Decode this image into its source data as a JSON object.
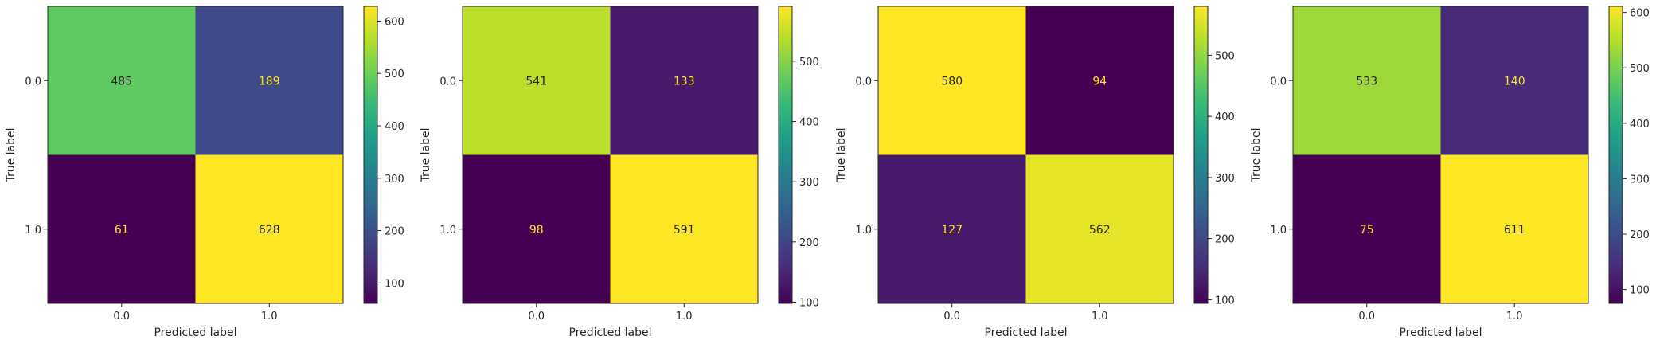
{
  "colormap": {
    "name": "viridis",
    "stops": [
      "#440154",
      "#482878",
      "#3e4989",
      "#31688e",
      "#26828e",
      "#1f9e89",
      "#35b779",
      "#6ece58",
      "#b5de2b",
      "#fde725"
    ]
  },
  "chart_data": [
    {
      "type": "heatmap",
      "title": "",
      "xlabel": "Predicted label",
      "ylabel": "True label",
      "x_categories": [
        "0.0",
        "1.0"
      ],
      "y_categories": [
        "0.0",
        "1.0"
      ],
      "values": [
        [
          485,
          189
        ],
        [
          61,
          628
        ]
      ],
      "value_labels": [
        [
          "485",
          "189"
        ],
        [
          "61",
          "628"
        ]
      ],
      "colorbar": {
        "range": [
          61,
          628
        ],
        "ticks": [
          100,
          200,
          300,
          400,
          500,
          600
        ],
        "tick_labels": [
          "100",
          "200",
          "300",
          "400",
          "500",
          "600"
        ]
      }
    },
    {
      "type": "heatmap",
      "title": "",
      "xlabel": "Predicted label",
      "ylabel": "True label",
      "x_categories": [
        "0.0",
        "1.0"
      ],
      "y_categories": [
        "0.0",
        "1.0"
      ],
      "values": [
        [
          541,
          133
        ],
        [
          98,
          591
        ]
      ],
      "value_labels": [
        [
          "541",
          "133"
        ],
        [
          "98",
          "591"
        ]
      ],
      "colorbar": {
        "range": [
          98,
          591
        ],
        "ticks": [
          100,
          200,
          300,
          400,
          500
        ],
        "tick_labels": [
          "100",
          "200",
          "300",
          "400",
          "500"
        ]
      }
    },
    {
      "type": "heatmap",
      "title": "",
      "xlabel": "Predicted label",
      "ylabel": "True label",
      "x_categories": [
        "0.0",
        "1.0"
      ],
      "y_categories": [
        "0.0",
        "1.0"
      ],
      "values": [
        [
          580,
          94
        ],
        [
          127,
          562
        ]
      ],
      "value_labels": [
        [
          "580",
          "94"
        ],
        [
          "127",
          "562"
        ]
      ],
      "colorbar": {
        "range": [
          94,
          580
        ],
        "ticks": [
          100,
          200,
          300,
          400,
          500
        ],
        "tick_labels": [
          "100",
          "200",
          "300",
          "400",
          "500"
        ]
      }
    },
    {
      "type": "heatmap",
      "title": "",
      "xlabel": "Predicted label",
      "ylabel": "True label",
      "x_categories": [
        "0.0",
        "1.0"
      ],
      "y_categories": [
        "0.0",
        "1.0"
      ],
      "values": [
        [
          533,
          140
        ],
        [
          75,
          611
        ]
      ],
      "value_labels": [
        [
          "533",
          "140"
        ],
        [
          "75",
          "611"
        ]
      ],
      "colorbar": {
        "range": [
          75,
          611
        ],
        "ticks": [
          100,
          200,
          300,
          400,
          500,
          600
        ],
        "tick_labels": [
          "100",
          "200",
          "300",
          "400",
          "500",
          "600"
        ]
      }
    }
  ]
}
